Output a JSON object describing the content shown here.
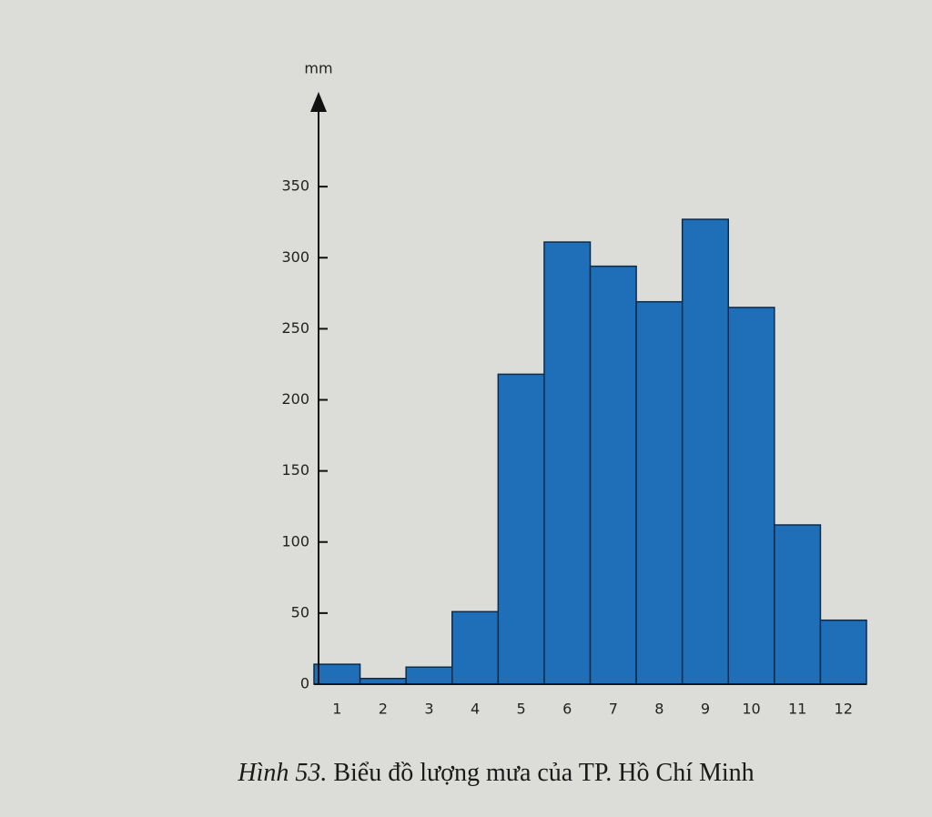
{
  "chart_data": {
    "type": "bar",
    "caption_label": "Hình 53.",
    "caption": "Biểu đồ lượng mưa của TP. Hồ Chí Minh",
    "y_label": "mm",
    "categories": [
      "1",
      "2",
      "3",
      "4",
      "5",
      "6",
      "7",
      "8",
      "9",
      "10",
      "11",
      "12"
    ],
    "values": [
      14,
      4,
      12,
      51,
      218,
      311,
      294,
      269,
      327,
      265,
      112,
      45
    ],
    "color": "#1f6fb8",
    "ylim": [
      0,
      400
    ],
    "yticks": [
      0,
      50,
      100,
      150,
      200,
      250,
      300,
      350
    ],
    "grid": false
  }
}
